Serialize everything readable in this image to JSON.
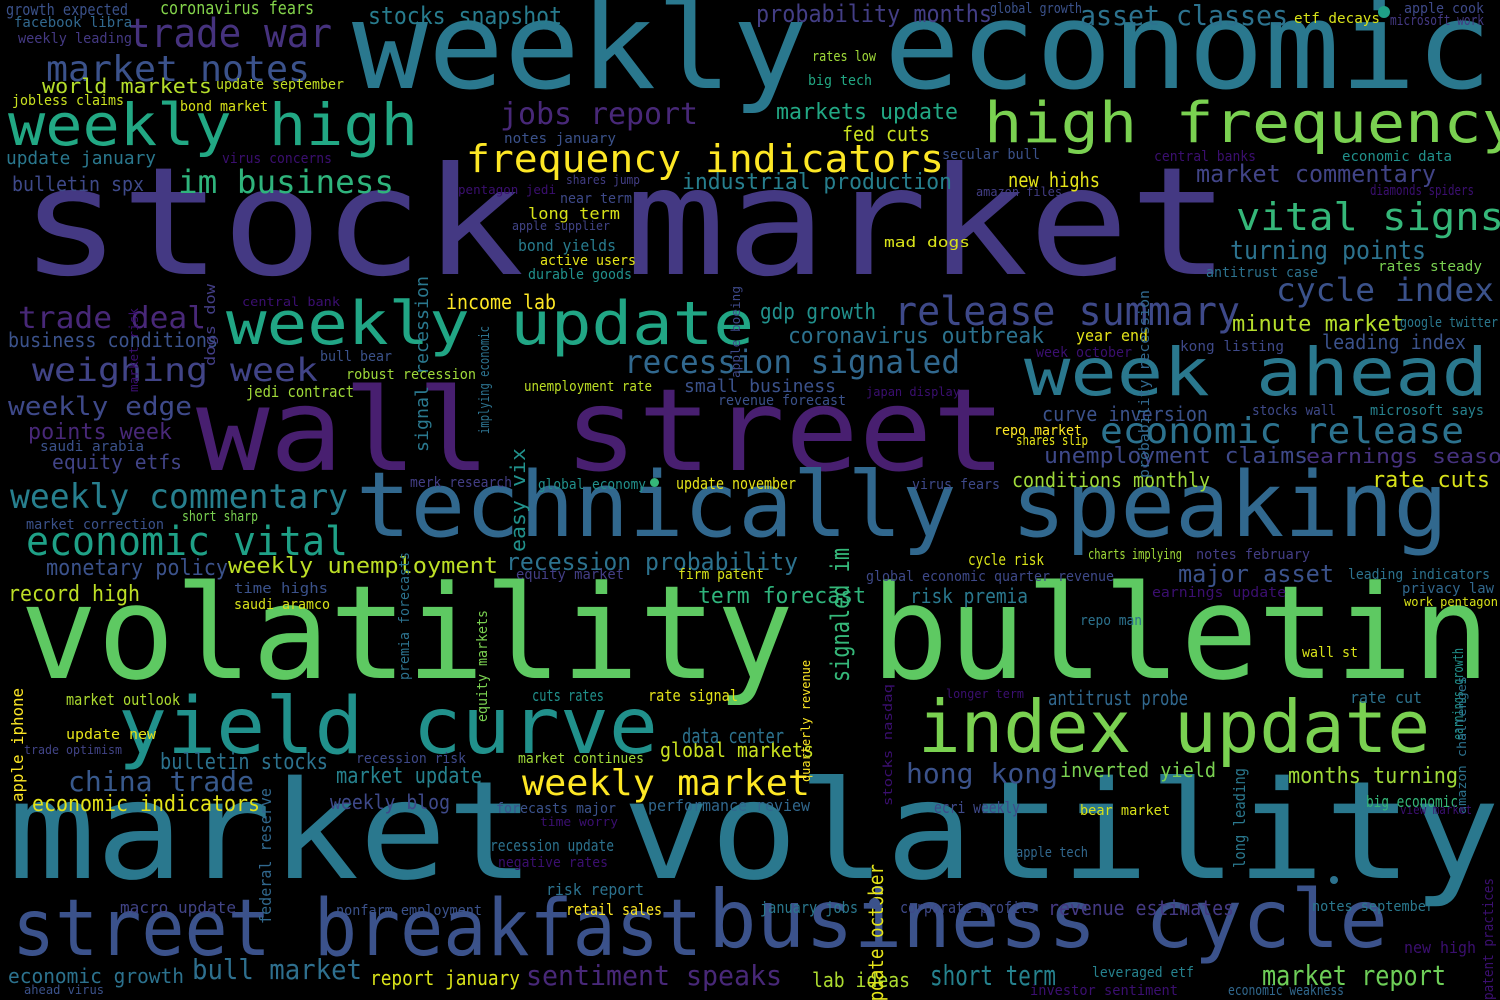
{
  "words": [
    {
      "text": "stock market",
      "color": "#443983"
    },
    {
      "text": "weekly economic",
      "color": "#2a788e"
    },
    {
      "text": "market volatility",
      "color": "#2a788e"
    },
    {
      "text": "volatility bulletin",
      "color": "#5ec962"
    },
    {
      "text": "wall street",
      "color": "#481f70"
    },
    {
      "text": "technically speaking",
      "color": "#31688e"
    },
    {
      "text": "business cycle",
      "color": "#3b528b"
    },
    {
      "text": "street breakfast",
      "color": "#3b528b"
    },
    {
      "text": "index update",
      "color": "#7ad151"
    },
    {
      "text": "yield curve",
      "color": "#21918c"
    },
    {
      "text": "high frequency",
      "color": "#7ad151"
    },
    {
      "text": "weekly update",
      "color": "#21a685"
    },
    {
      "text": "weekly high",
      "color": "#22a884"
    },
    {
      "text": "week ahead",
      "color": "#2a788e"
    },
    {
      "text": "frequency indicators",
      "color": "#fde725"
    },
    {
      "text": "release summary",
      "color": "#3e4989"
    },
    {
      "text": "recession signaled",
      "color": "#31688e"
    },
    {
      "text": "economic release",
      "color": "#2c728e"
    },
    {
      "text": "weekly market",
      "color": "#fde725"
    },
    {
      "text": "vital signs",
      "color": "#35b779"
    },
    {
      "text": "cycle index",
      "color": "#3b528b"
    },
    {
      "text": "economic vital",
      "color": "#1fa187"
    },
    {
      "text": "weekly commentary",
      "color": "#277f8e"
    },
    {
      "text": "im business",
      "color": "#2fb47c"
    },
    {
      "text": "trade war",
      "color": "#46327e"
    },
    {
      "text": "market notes",
      "color": "#3b528b"
    },
    {
      "text": "jobs report",
      "color": "#482878"
    },
    {
      "text": "weighing week",
      "color": "#414487"
    },
    {
      "text": "trade deal",
      "color": "#482878"
    },
    {
      "text": "china trade",
      "color": "#38598c"
    },
    {
      "text": "hong kong",
      "color": "#3b528b"
    },
    {
      "text": "bull market",
      "color": "#2e6f8e"
    },
    {
      "text": "sentiment speaks",
      "color": "#482878"
    },
    {
      "text": "market report",
      "color": "#6ece58"
    },
    {
      "text": "short term",
      "color": "#26828e"
    },
    {
      "text": "stocks snapshot",
      "color": "#287c8e"
    },
    {
      "text": "probability months",
      "color": "#433e85"
    },
    {
      "text": "asset classes",
      "color": "#2c728e"
    },
    {
      "text": "markets update",
      "color": "#22a884"
    },
    {
      "text": "industrial production",
      "color": "#277f8e"
    },
    {
      "text": "market commentary",
      "color": "#414487"
    },
    {
      "text": "turning points",
      "color": "#2c728e"
    },
    {
      "text": "minute market",
      "color": "#b5de2b"
    },
    {
      "text": "leading index",
      "color": "#3b528b"
    },
    {
      "text": "coronavirus outbreak",
      "color": "#2c728e"
    },
    {
      "text": "gdp growth",
      "color": "#21918c"
    },
    {
      "text": "unemployment claims",
      "color": "#3e4989"
    },
    {
      "text": "earnings season",
      "color": "#46327e"
    },
    {
      "text": "curve inversion",
      "color": "#3b528b"
    },
    {
      "text": "recession probability",
      "color": "#2c728e"
    },
    {
      "text": "weekly unemployment",
      "color": "#bddf26"
    },
    {
      "text": "monetary policy",
      "color": "#3b528b"
    },
    {
      "text": "record high",
      "color": "#bddf26"
    },
    {
      "text": "term forecast",
      "color": "#2fb47c"
    },
    {
      "text": "risk premia",
      "color": "#2a788e"
    },
    {
      "text": "major asset",
      "color": "#3b528b"
    },
    {
      "text": "antitrust probe",
      "color": "#31688e"
    },
    {
      "text": "inverted yield",
      "color": "#7ad151"
    },
    {
      "text": "months turning",
      "color": "#a0da39"
    },
    {
      "text": "economic indicators",
      "color": "#e5e419"
    },
    {
      "text": "market update",
      "color": "#26828e"
    },
    {
      "text": "global markets",
      "color": "#c8e020"
    },
    {
      "text": "data center",
      "color": "#2c728e"
    },
    {
      "text": "equity etfs",
      "color": "#414487"
    },
    {
      "text": "weekly edge",
      "color": "#3e4989"
    },
    {
      "text": "points week",
      "color": "#482878"
    },
    {
      "text": "rate cuts",
      "color": "#d8e219"
    },
    {
      "text": "conditions monthly",
      "color": "#9fda3a"
    },
    {
      "text": "world markets",
      "color": "#b5de2b"
    },
    {
      "text": "update january",
      "color": "#2a788e"
    },
    {
      "text": "bulletin spx",
      "color": "#3e4989"
    },
    {
      "text": "fed cuts",
      "color": "#c8e020"
    },
    {
      "text": "new highs",
      "color": "#e5e419"
    },
    {
      "text": "income lab",
      "color": "#fde725"
    },
    {
      "text": "business conditions",
      "color": "#3b528b"
    },
    {
      "text": "lab ideas",
      "color": "#addc30"
    },
    {
      "text": "report january",
      "color": "#d8e219"
    },
    {
      "text": "weekly blog",
      "color": "#3e4989"
    },
    {
      "text": "economic growth",
      "color": "#2c728e"
    },
    {
      "text": "bulletin stocks",
      "color": "#2c728e"
    },
    {
      "text": "revenue estimates",
      "color": "#443983"
    },
    {
      "text": "signaled im",
      "color": "#35b779"
    },
    {
      "text": "easy vix",
      "color": "#21918c"
    },
    {
      "text": "update october",
      "color": "#e5e419"
    },
    {
      "text": "signal recession",
      "color": "#2a788e"
    },
    {
      "text": "small business",
      "color": "#3b528b"
    },
    {
      "text": "coronavirus fears",
      "color": "#84d44b"
    },
    {
      "text": "growth expected",
      "color": "#3b528b"
    },
    {
      "text": "facebook libra",
      "color": "#31688e"
    },
    {
      "text": "weekly leading",
      "color": "#443983"
    },
    {
      "text": "jobless claims",
      "color": "#c8e020"
    },
    {
      "text": "bond market",
      "color": "#d8e219"
    },
    {
      "text": "update september",
      "color": "#c2df23"
    },
    {
      "text": "virus concerns",
      "color": "#3b0f70"
    },
    {
      "text": "notes january",
      "color": "#3b528b"
    },
    {
      "text": "pentagon jedi",
      "color": "#3b0f70"
    },
    {
      "text": "shares jump",
      "color": "#433e85"
    },
    {
      "text": "near term",
      "color": "#3e4989"
    },
    {
      "text": "long term",
      "color": "#d8e219"
    },
    {
      "text": "apple supplier",
      "color": "#414487"
    },
    {
      "text": "bond yields",
      "color": "#287c8e"
    },
    {
      "text": "active users",
      "color": "#e5e419"
    },
    {
      "text": "durable goods",
      "color": "#21918c"
    },
    {
      "text": "dogs dow",
      "color": "#433e85"
    },
    {
      "text": "market risk",
      "color": "#3b0f70"
    },
    {
      "text": "central bank",
      "color": "#3b0f70"
    },
    {
      "text": "apple boeing",
      "color": "#3e4989"
    },
    {
      "text": "mad dogs",
      "color": "#d8e219"
    },
    {
      "text": "amazon files",
      "color": "#433e85"
    },
    {
      "text": "secular bull",
      "color": "#3b528b"
    },
    {
      "text": "central banks",
      "color": "#3b0f70"
    },
    {
      "text": "economic data",
      "color": "#21918c"
    },
    {
      "text": "diamonds spiders",
      "color": "#3b0f70"
    },
    {
      "text": "antitrust case",
      "color": "#2c728e"
    },
    {
      "text": "rates steady",
      "color": "#7ad151"
    },
    {
      "text": "google twitter",
      "color": "#2a788e"
    },
    {
      "text": "kong listing",
      "color": "#3e4989"
    },
    {
      "text": "year end",
      "color": "#e5e419"
    },
    {
      "text": "week october",
      "color": "#3b0f70"
    },
    {
      "text": "probability recession",
      "color": "#31688e"
    },
    {
      "text": "rates low",
      "color": "#a0da39"
    },
    {
      "text": "big tech",
      "color": "#22a884"
    },
    {
      "text": "global growth",
      "color": "#3b528b"
    },
    {
      "text": "etf decays",
      "color": "#d8e219"
    },
    {
      "text": "apple cook",
      "color": "#3e4989"
    },
    {
      "text": "microsoft work",
      "color": "#443983"
    },
    {
      "text": "bull bear",
      "color": "#3b528b"
    },
    {
      "text": "robust recession",
      "color": "#9fda3a"
    },
    {
      "text": "jedi contract",
      "color": "#a0da39"
    },
    {
      "text": "implying economic",
      "color": "#2c728e"
    },
    {
      "text": "unemployment rate",
      "color": "#bddf26"
    },
    {
      "text": "revenue forecast",
      "color": "#3b528b"
    },
    {
      "text": "japan display",
      "color": "#3b0f70"
    },
    {
      "text": "repo market",
      "color": "#fde725"
    },
    {
      "text": "shares slip",
      "color": "#e5e419"
    },
    {
      "text": "stocks wall",
      "color": "#3e4989"
    },
    {
      "text": "microsoft says",
      "color": "#26828e"
    },
    {
      "text": "saudi arabia",
      "color": "#3b528b"
    },
    {
      "text": "merk research",
      "color": "#433e85"
    },
    {
      "text": "global economy",
      "color": "#21918c"
    },
    {
      "text": "update november",
      "color": "#e5e419"
    },
    {
      "text": "virus fears",
      "color": "#3e4989"
    },
    {
      "text": "market correction",
      "color": "#3b528b"
    },
    {
      "text": "short sharp",
      "color": "#7ad151"
    },
    {
      "text": "equity market",
      "color": "#433e85"
    },
    {
      "text": "firm patent",
      "color": "#d8e219"
    },
    {
      "text": "global economic quarter revenue",
      "color": "#3e4989"
    },
    {
      "text": "cycle risk",
      "color": "#d8e219"
    },
    {
      "text": "charts implying",
      "color": "#a0da39"
    },
    {
      "text": "notes february",
      "color": "#433e85"
    },
    {
      "text": "leading indicators",
      "color": "#2c728e"
    },
    {
      "text": "privacy law",
      "color": "#31688e"
    },
    {
      "text": "work pentagon",
      "color": "#d8e219"
    },
    {
      "text": "earnings update",
      "color": "#3b0f70"
    },
    {
      "text": "time highs",
      "color": "#3b528b"
    },
    {
      "text": "saudi aramco",
      "color": "#d8e219"
    },
    {
      "text": "premia forecasts",
      "color": "#2c728e"
    },
    {
      "text": "equity markets",
      "color": "#7ad151"
    },
    {
      "text": "quarterly revenue",
      "color": "#fde725"
    },
    {
      "text": "repo man",
      "color": "#2c728e"
    },
    {
      "text": "wall st",
      "color": "#d8e219"
    },
    {
      "text": "earnings growth",
      "color": "#21918c"
    },
    {
      "text": "market outlook",
      "color": "#addc30"
    },
    {
      "text": "apple iphone",
      "color": "#fde725"
    },
    {
      "text": "update new",
      "color": "#e5e419"
    },
    {
      "text": "trade optimism",
      "color": "#414487"
    },
    {
      "text": "cuts rates",
      "color": "#21918c"
    },
    {
      "text": "rate signal",
      "color": "#e5e419"
    },
    {
      "text": "longer term",
      "color": "#3b0f70"
    },
    {
      "text": "rate cut",
      "color": "#2c728e"
    },
    {
      "text": "stocks nasdaq",
      "color": "#3b0f70"
    },
    {
      "text": "recession risk",
      "color": "#3e4989"
    },
    {
      "text": "market continues",
      "color": "#a0da39"
    },
    {
      "text": "amazon challenges",
      "color": "#2c728e"
    },
    {
      "text": "big economic",
      "color": "#35b779"
    },
    {
      "text": "view market",
      "color": "#3b0f70"
    },
    {
      "text": "long leading",
      "color": "#2a788e"
    },
    {
      "text": "bear market",
      "color": "#d8e219"
    },
    {
      "text": "ecri weekly",
      "color": "#3e4989"
    },
    {
      "text": "performance review",
      "color": "#31688e"
    },
    {
      "text": "forecasts major",
      "color": "#3b528b"
    },
    {
      "text": "time worry",
      "color": "#3b0f70"
    },
    {
      "text": "federal reserve",
      "color": "#31688e"
    },
    {
      "text": "recession update",
      "color": "#2c728e"
    },
    {
      "text": "negative rates",
      "color": "#3b0f70"
    },
    {
      "text": "apple tech",
      "color": "#31688e"
    },
    {
      "text": "risk report",
      "color": "#2c728e"
    },
    {
      "text": "macro update",
      "color": "#414487"
    },
    {
      "text": "nonfarm employment",
      "color": "#3b528b"
    },
    {
      "text": "retail sales",
      "color": "#fde725"
    },
    {
      "text": "january jobs",
      "color": "#2a788e"
    },
    {
      "text": "corporate profits",
      "color": "#3e4989"
    },
    {
      "text": "notes september",
      "color": "#2a788e"
    },
    {
      "text": "patent practices",
      "color": "#3b0f70"
    },
    {
      "text": "new high",
      "color": "#3b0f70"
    },
    {
      "text": "leveraged etf",
      "color": "#26828e"
    },
    {
      "text": "investor sentiment",
      "color": "#3b0f70"
    },
    {
      "text": "economic weakness",
      "color": "#31688e"
    },
    {
      "text": "ahead virus",
      "color": "#3b528b"
    }
  ],
  "dots": [
    {
      "color": "#1fa187"
    },
    {
      "color": "#35b779"
    },
    {
      "color": "#3b528b"
    },
    {
      "color": "#2c728e"
    }
  ]
}
